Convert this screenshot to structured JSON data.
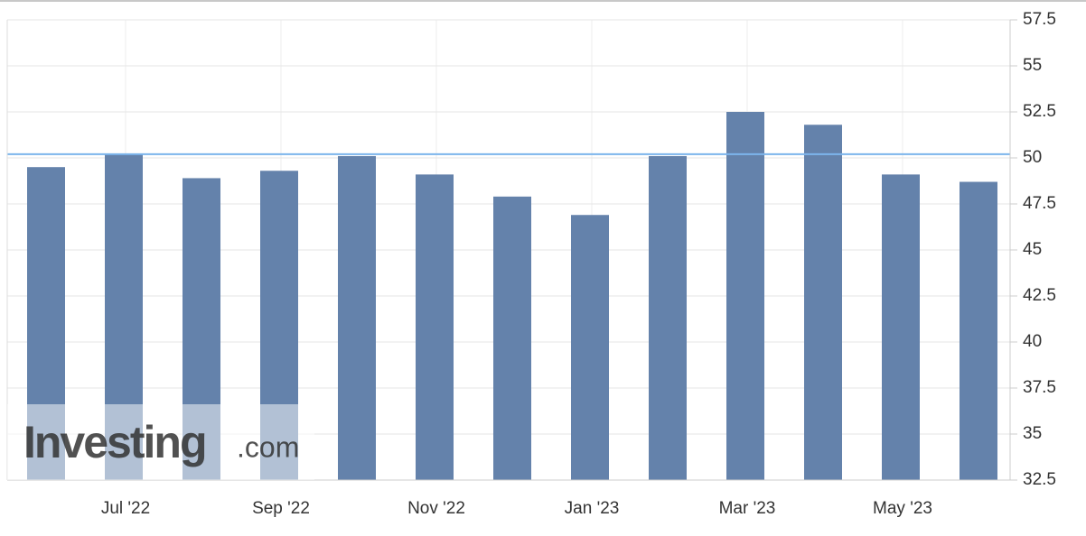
{
  "chart_data": {
    "type": "bar",
    "categories": [
      null,
      "Jul '22",
      null,
      "Sep '22",
      null,
      "Nov '22",
      null,
      "Jan '23",
      null,
      "Mar '23",
      null,
      "May '23",
      null
    ],
    "values": [
      49.5,
      50.2,
      48.9,
      49.3,
      50.1,
      49.1,
      47.9,
      46.9,
      50.1,
      52.5,
      51.8,
      49.1,
      48.7
    ],
    "color": "#6482ab",
    "reference_line": 50.2,
    "reference_color": "#7cb5ec",
    "ylim": [
      32.5,
      57.5
    ],
    "yticks": [
      32.5,
      35,
      37.5,
      40,
      42.5,
      45,
      47.5,
      50,
      52.5,
      55,
      57.5
    ],
    "grid": true,
    "watermark": [
      "Investing",
      ".com"
    ]
  }
}
